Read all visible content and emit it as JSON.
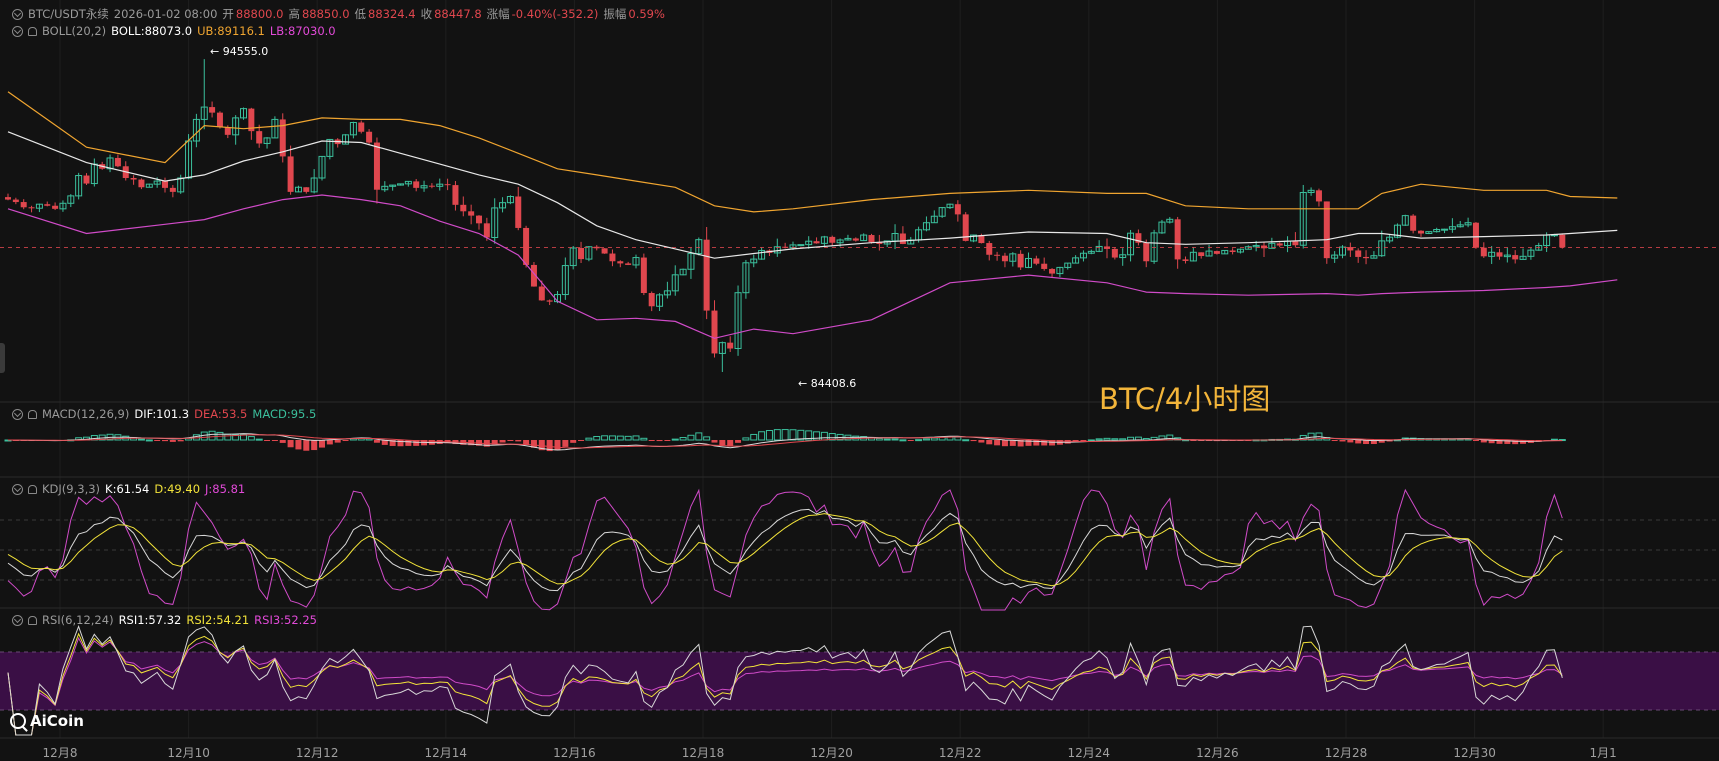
{
  "header": {
    "symbol": "BTC/USDT永续",
    "datetime": "2026-01-02 08:00",
    "open_label": "开",
    "open": "88800.0",
    "high_label": "高",
    "high": "88850.0",
    "low_label": "低",
    "low": "88324.4",
    "close_label": "收",
    "close": "88447.8",
    "change_label": "涨幅",
    "change": "-0.40%(-352.2)",
    "amp_label": "振幅",
    "amp": "0.59%"
  },
  "boll": {
    "name": "BOLL(20,2)",
    "mid": "BOLL:88073.0",
    "ub": "UB:89116.1",
    "lb": "LB:87030.0"
  },
  "macd": {
    "name": "MACD(12,26,9)",
    "dif": "DIF:101.3",
    "dea": "DEA:53.5",
    "macd": "MACD:95.5"
  },
  "kdj": {
    "name": "KDJ(9,3,3)",
    "k": "K:61.54",
    "d": "D:49.40",
    "j": "J:85.81"
  },
  "rsi": {
    "name": "RSI(6,12,24)",
    "rsi1": "RSI1:57.32",
    "rsi2": "RSI2:54.21",
    "rsi3": "RSI3:52.25"
  },
  "watermark": "BTC/4小时图",
  "logo": "AiCoin",
  "extremes": {
    "high_label": "← 94555.0",
    "low_label": "← 84408.6"
  },
  "colors": {
    "up": "#3bbf9c",
    "down": "#e0474e",
    "mid": "#e8e8e8",
    "upper": "#f0a530",
    "lower": "#d04bc8",
    "background": "#121212"
  },
  "chart_data": {
    "type": "candlestick",
    "title": "",
    "x_tick_labels": [
      "12月8",
      "12月10",
      "12月12",
      "12月14",
      "12月16",
      "12月18",
      "12月20",
      "12月22",
      "12月24",
      "12月26",
      "12月28",
      "12月30",
      "1月1"
    ],
    "price_range": [
      83500,
      95500
    ],
    "marked_high": 94555.0,
    "marked_low": 84408.6,
    "last_close": 88447.8,
    "bars_per_day": 6,
    "closes": [
      90000,
      89920,
      89750,
      89720,
      89850,
      89800,
      89700,
      89880,
      90120,
      90780,
      90520,
      91150,
      91000,
      91350,
      91080,
      90700,
      90650,
      90400,
      90500,
      90600,
      90380,
      90250,
      90700,
      91900,
      92600,
      93000,
      92820,
      92350,
      92100,
      92650,
      92950,
      92220,
      91820,
      92000,
      92600,
      91400,
      90250,
      90400,
      90250,
      90700,
      91400,
      91950,
      91800,
      92100,
      92500,
      92200,
      91850,
      90320,
      90430,
      90470,
      90510,
      90590,
      90380,
      90450,
      90430,
      90500,
      90470,
      89830,
      89620,
      89480,
      89230,
      88770,
      89730,
      89900,
      90100,
      89080,
      87880,
      87180,
      86730,
      86690,
      86920,
      87860,
      88430,
      88070,
      88470,
      88420,
      88250,
      88000,
      87930,
      87880,
      88120,
      86970,
      86540,
      86910,
      87040,
      87560,
      87740,
      88250,
      88700,
      86400,
      85010,
      85360,
      85170,
      86980,
      87950,
      88070,
      88350,
      88270,
      88470,
      88440,
      88530,
      88540,
      88650,
      88580,
      88790,
      88600,
      88690,
      88740,
      88670,
      88850,
      88620,
      88560,
      88660,
      88900,
      88560,
      88690,
      89020,
      89250,
      89460,
      89740,
      89850,
      89520,
      88660,
      88850,
      88590,
      88210,
      88180,
      88000,
      88240,
      87800,
      88090,
      87920,
      87750,
      87600,
      87800,
      87940,
      88110,
      88260,
      88320,
      88480,
      88400,
      88120,
      88210,
      88910,
      88600,
      88000,
      88920,
      89270,
      89360,
      88060,
      88010,
      88290,
      88170,
      88330,
      88240,
      88350,
      88300,
      88390,
      88470,
      88510,
      88420,
      88580,
      88510,
      88650,
      88520,
      90230,
      90300,
      89940,
      88100,
      88200,
      88460,
      88350,
      88140,
      88100,
      88180,
      88660,
      88780,
      89170,
      89480,
      88990,
      88900,
      88960,
      89030,
      89040,
      89120,
      89180,
      89250,
      88440,
      88160,
      88290,
      88150,
      88200,
      88060,
      88160,
      88360,
      88510,
      88850,
      88860,
      88450
    ],
    "boll_upper_pts": [
      [
        0,
        93.5
      ],
      [
        10,
        91.7
      ],
      [
        20,
        91.2
      ],
      [
        25,
        92.4
      ],
      [
        30,
        92.3
      ],
      [
        35,
        92.4
      ],
      [
        40,
        92.65
      ],
      [
        45,
        92.6
      ],
      [
        50,
        92.6
      ],
      [
        55,
        92.4
      ],
      [
        60,
        92.0
      ],
      [
        65,
        91.5
      ],
      [
        70,
        91.0
      ],
      [
        75,
        90.8
      ],
      [
        80,
        90.6
      ],
      [
        85,
        90.4
      ],
      [
        90,
        89.8
      ],
      [
        95,
        89.6
      ],
      [
        100,
        89.7
      ],
      [
        110,
        90.0
      ],
      [
        120,
        90.2
      ],
      [
        130,
        90.3
      ],
      [
        140,
        90.2
      ],
      [
        145,
        90.2
      ],
      [
        150,
        89.8
      ],
      [
        158,
        89.7
      ],
      [
        168,
        89.7
      ],
      [
        172,
        89.7
      ],
      [
        175,
        90.2
      ],
      [
        180,
        90.5
      ],
      [
        188,
        90.3
      ],
      [
        196,
        90.3
      ],
      [
        199,
        90.1
      ],
      [
        205,
        90.05
      ]
    ],
    "boll_mid_pts": [
      [
        0,
        92.2
      ],
      [
        10,
        91.2
      ],
      [
        20,
        90.6
      ],
      [
        25,
        90.8
      ],
      [
        30,
        91.25
      ],
      [
        35,
        91.55
      ],
      [
        40,
        91.9
      ],
      [
        45,
        91.85
      ],
      [
        50,
        91.5
      ],
      [
        55,
        91.15
      ],
      [
        60,
        90.8
      ],
      [
        65,
        90.5
      ],
      [
        70,
        89.9
      ],
      [
        75,
        89.15
      ],
      [
        80,
        88.7
      ],
      [
        85,
        88.4
      ],
      [
        90,
        88.1
      ],
      [
        95,
        88.25
      ],
      [
        100,
        88.4
      ],
      [
        110,
        88.6
      ],
      [
        120,
        88.75
      ],
      [
        130,
        88.95
      ],
      [
        140,
        88.9
      ],
      [
        145,
        88.6
      ],
      [
        150,
        88.55
      ],
      [
        158,
        88.6
      ],
      [
        168,
        88.7
      ],
      [
        172,
        88.9
      ],
      [
        175,
        88.9
      ],
      [
        180,
        88.75
      ],
      [
        188,
        88.8
      ],
      [
        196,
        88.85
      ],
      [
        199,
        88.9
      ],
      [
        205,
        89.0
      ]
    ],
    "boll_lower_pts": [
      [
        0,
        89.7
      ],
      [
        10,
        88.9
      ],
      [
        20,
        89.2
      ],
      [
        25,
        89.35
      ],
      [
        30,
        89.7
      ],
      [
        35,
        90.0
      ],
      [
        40,
        90.15
      ],
      [
        45,
        90.0
      ],
      [
        50,
        89.8
      ],
      [
        55,
        89.3
      ],
      [
        60,
        88.9
      ],
      [
        65,
        88.2
      ],
      [
        70,
        86.7
      ],
      [
        75,
        86.1
      ],
      [
        80,
        86.15
      ],
      [
        85,
        86.05
      ],
      [
        90,
        85.5
      ],
      [
        95,
        85.8
      ],
      [
        100,
        85.65
      ],
      [
        110,
        86.1
      ],
      [
        120,
        87.3
      ],
      [
        130,
        87.55
      ],
      [
        140,
        87.3
      ],
      [
        145,
        87.0
      ],
      [
        150,
        86.95
      ],
      [
        158,
        86.9
      ],
      [
        168,
        86.95
      ],
      [
        172,
        86.9
      ],
      [
        175,
        86.95
      ],
      [
        180,
        87.0
      ],
      [
        188,
        87.05
      ],
      [
        196,
        87.15
      ],
      [
        199,
        87.2
      ],
      [
        205,
        87.4
      ]
    ]
  }
}
